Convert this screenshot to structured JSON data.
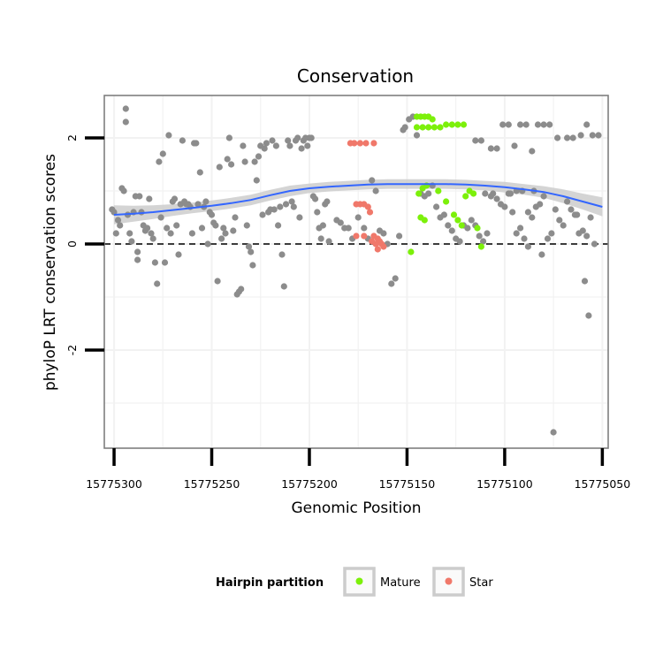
{
  "colors": {
    "other": "#8c8c8c",
    "mature": "#7cf00a",
    "star": "#f0786a",
    "smooth_line": "#3366ff",
    "ribbon": "#cccccc"
  },
  "chart_data": {
    "type": "scatter",
    "title": "Conservation",
    "xlabel": "Genomic Position",
    "ylabel": "phyloP LRT conservation scores",
    "xlim": [
      15775305,
      15775047
    ],
    "x_reversed": true,
    "ylim": [
      -3.85,
      2.8
    ],
    "x_ticks": [
      15775300,
      15775250,
      15775200,
      15775150,
      15775100,
      15775050
    ],
    "x_tick_labels": [
      "15775300",
      "15775250",
      "15775200",
      "15775150",
      "15775100",
      "15775050"
    ],
    "y_ticks": [
      2,
      0,
      -2
    ],
    "y_tick_labels": [
      "2",
      "0",
      "-2"
    ],
    "hline": 0,
    "legend": {
      "title": "Hairpin partition",
      "position": "bottom",
      "entries": [
        {
          "label": "Mature",
          "series": "mature"
        },
        {
          "label": "Star",
          "series": "star"
        }
      ]
    },
    "series": [
      {
        "name": "other",
        "points": [
          [
            15775301,
            0.65
          ],
          [
            15775300,
            0.6
          ],
          [
            15775299,
            0.2
          ],
          [
            15775298,
            0.45
          ],
          [
            15775297,
            0.35
          ],
          [
            15775296,
            1.05
          ],
          [
            15775295,
            1.0
          ],
          [
            15775294,
            2.55
          ],
          [
            15775294,
            2.3
          ],
          [
            15775293,
            0.55
          ],
          [
            15775292,
            0.2
          ],
          [
            15775291,
            0.05
          ],
          [
            15775290,
            0.6
          ],
          [
            15775289,
            0.9
          ],
          [
            15775288,
            -0.15
          ],
          [
            15775288,
            -0.3
          ],
          [
            15775287,
            0.9
          ],
          [
            15775286,
            0.6
          ],
          [
            15775285,
            0.35
          ],
          [
            15775284,
            0.25
          ],
          [
            15775283,
            0.3
          ],
          [
            15775282,
            0.85
          ],
          [
            15775281,
            0.2
          ],
          [
            15775280,
            0.1
          ],
          [
            15775279,
            -0.35
          ],
          [
            15775278,
            -0.75
          ],
          [
            15775277,
            1.55
          ],
          [
            15775276,
            0.5
          ],
          [
            15775275,
            1.7
          ],
          [
            15775274,
            -0.35
          ],
          [
            15775273,
            0.3
          ],
          [
            15775272,
            2.05
          ],
          [
            15775271,
            0.2
          ],
          [
            15775270,
            0.8
          ],
          [
            15775269,
            0.85
          ],
          [
            15775268,
            0.35
          ],
          [
            15775267,
            -0.2
          ],
          [
            15775266,
            0.75
          ],
          [
            15775265,
            1.95
          ],
          [
            15775264,
            0.8
          ],
          [
            15775263,
            0.75
          ],
          [
            15775262,
            0.75
          ],
          [
            15775261,
            0.7
          ],
          [
            15775260,
            0.2
          ],
          [
            15775259,
            1.9
          ],
          [
            15775258,
            1.9
          ],
          [
            15775257,
            0.75
          ],
          [
            15775256,
            1.35
          ],
          [
            15775255,
            0.3
          ],
          [
            15775254,
            0.7
          ],
          [
            15775253,
            0.8
          ],
          [
            15775252,
            0.0
          ],
          [
            15775251,
            0.6
          ],
          [
            15775250,
            0.55
          ],
          [
            15775249,
            0.4
          ],
          [
            15775248,
            0.35
          ],
          [
            15775247,
            -0.7
          ],
          [
            15775246,
            1.45
          ],
          [
            15775245,
            0.1
          ],
          [
            15775244,
            0.3
          ],
          [
            15775243,
            0.2
          ],
          [
            15775242,
            1.6
          ],
          [
            15775241,
            2.0
          ],
          [
            15775240,
            1.5
          ],
          [
            15775239,
            0.25
          ],
          [
            15775238,
            0.5
          ],
          [
            15775237,
            -0.95
          ],
          [
            15775236,
            -0.9
          ],
          [
            15775235,
            -0.85
          ],
          [
            15775234,
            1.85
          ],
          [
            15775233,
            1.55
          ],
          [
            15775232,
            0.35
          ],
          [
            15775231,
            -0.05
          ],
          [
            15775230,
            -0.15
          ],
          [
            15775229,
            -0.4
          ],
          [
            15775228,
            1.55
          ],
          [
            15775227,
            1.2
          ],
          [
            15775226,
            1.65
          ],
          [
            15775225,
            1.85
          ],
          [
            15775224,
            0.55
          ],
          [
            15775223,
            1.8
          ],
          [
            15775222,
            1.9
          ],
          [
            15775221,
            0.6
          ],
          [
            15775220,
            0.65
          ],
          [
            15775219,
            1.95
          ],
          [
            15775218,
            0.65
          ],
          [
            15775217,
            1.85
          ],
          [
            15775216,
            0.35
          ],
          [
            15775215,
            0.7
          ],
          [
            15775214,
            -0.2
          ],
          [
            15775213,
            -0.8
          ],
          [
            15775212,
            0.75
          ],
          [
            15775211,
            1.95
          ],
          [
            15775210,
            1.85
          ],
          [
            15775209,
            0.8
          ],
          [
            15775208,
            0.7
          ],
          [
            15775207,
            1.95
          ],
          [
            15775206,
            2.0
          ],
          [
            15775205,
            0.5
          ],
          [
            15775204,
            1.8
          ],
          [
            15775203,
            1.95
          ],
          [
            15775202,
            2.0
          ],
          [
            15775201,
            1.85
          ],
          [
            15775200,
            2.0
          ],
          [
            15775199,
            2.0
          ],
          [
            15775198,
            0.9
          ],
          [
            15775197,
            0.85
          ],
          [
            15775196,
            0.6
          ],
          [
            15775195,
            0.3
          ],
          [
            15775194,
            0.1
          ],
          [
            15775193,
            0.35
          ],
          [
            15775192,
            0.75
          ],
          [
            15775191,
            0.8
          ],
          [
            15775190,
            0.05
          ],
          [
            15775186,
            0.45
          ],
          [
            15775184,
            0.4
          ],
          [
            15775182,
            0.3
          ],
          [
            15775180,
            0.3
          ],
          [
            15775178,
            0.1
          ],
          [
            15775175,
            0.5
          ],
          [
            15775172,
            0.3
          ],
          [
            15775170,
            0.1
          ],
          [
            15775168,
            1.2
          ],
          [
            15775166,
            1.0
          ],
          [
            15775164,
            0.25
          ],
          [
            15775162,
            0.2
          ],
          [
            15775160,
            0.0
          ],
          [
            15775158,
            -0.75
          ],
          [
            15775156,
            -0.65
          ],
          [
            15775154,
            0.15
          ],
          [
            15775152,
            2.15
          ],
          [
            15775151,
            2.2
          ],
          [
            15775149,
            2.35
          ],
          [
            15775147,
            2.4
          ],
          [
            15775145,
            2.05
          ],
          [
            15775143,
            0.95
          ],
          [
            15775141,
            0.9
          ],
          [
            15775139,
            0.95
          ],
          [
            15775137,
            1.1
          ],
          [
            15775135,
            0.7
          ],
          [
            15775133,
            0.5
          ],
          [
            15775131,
            0.55
          ],
          [
            15775129,
            0.35
          ],
          [
            15775127,
            0.25
          ],
          [
            15775125,
            0.1
          ],
          [
            15775123,
            0.05
          ],
          [
            15775121,
            0.35
          ],
          [
            15775119,
            0.3
          ],
          [
            15775117,
            0.45
          ],
          [
            15775115,
            0.35
          ],
          [
            15775113,
            0.15
          ],
          [
            15775111,
            0.05
          ],
          [
            15775109,
            0.2
          ],
          [
            15775107,
            0.9
          ],
          [
            15775106,
            0.95
          ],
          [
            15775104,
            0.85
          ],
          [
            15775102,
            0.75
          ],
          [
            15775100,
            0.7
          ],
          [
            15775098,
            0.95
          ],
          [
            15775096,
            0.6
          ],
          [
            15775094,
            0.2
          ],
          [
            15775092,
            0.3
          ],
          [
            15775090,
            0.1
          ],
          [
            15775088,
            -0.05
          ],
          [
            15775086,
            0.5
          ],
          [
            15775084,
            0.7
          ],
          [
            15775082,
            0.75
          ],
          [
            15775080,
            0.9
          ],
          [
            15775078,
            0.1
          ],
          [
            15775076,
            0.2
          ],
          [
            15775074,
            0.65
          ],
          [
            15775072,
            0.45
          ],
          [
            15775070,
            0.35
          ],
          [
            15775068,
            0.8
          ],
          [
            15775066,
            0.65
          ],
          [
            15775064,
            0.55
          ],
          [
            15775062,
            0.2
          ],
          [
            15775060,
            0.25
          ],
          [
            15775058,
            0.15
          ],
          [
            15775056,
            0.5
          ],
          [
            15775054,
            0.0
          ],
          [
            15775107,
            1.8
          ],
          [
            15775104,
            1.8
          ],
          [
            15775101,
            2.25
          ],
          [
            15775098,
            2.25
          ],
          [
            15775095,
            1.85
          ],
          [
            15775092,
            2.25
          ],
          [
            15775089,
            2.25
          ],
          [
            15775086,
            1.75
          ],
          [
            15775083,
            2.25
          ],
          [
            15775080,
            2.25
          ],
          [
            15775077,
            2.25
          ],
          [
            15775073,
            2.0
          ],
          [
            15775068,
            2.0
          ],
          [
            15775065,
            2.0
          ],
          [
            15775061,
            2.05
          ],
          [
            15775058,
            2.25
          ],
          [
            15775055,
            2.05
          ],
          [
            15775052,
            2.05
          ],
          [
            15775115,
            1.95
          ],
          [
            15775112,
            1.95
          ],
          [
            15775110,
            0.95
          ],
          [
            15775097,
            0.95
          ],
          [
            15775094,
            1.0
          ],
          [
            15775091,
            1.0
          ],
          [
            15775088,
            0.6
          ],
          [
            15775085,
            1.0
          ],
          [
            15775081,
            -0.2
          ],
          [
            15775075,
            -3.55
          ],
          [
            15775063,
            0.55
          ],
          [
            15775059,
            -0.7
          ],
          [
            15775057,
            -1.35
          ]
        ]
      },
      {
        "name": "mature",
        "points": [
          [
            15775145,
            2.4
          ],
          [
            15775143,
            2.4
          ],
          [
            15775141,
            2.4
          ],
          [
            15775139,
            2.4
          ],
          [
            15775137,
            2.35
          ],
          [
            15775145,
            2.2
          ],
          [
            15775142,
            2.2
          ],
          [
            15775139,
            2.2
          ],
          [
            15775136,
            2.2
          ],
          [
            15775133,
            2.2
          ],
          [
            15775130,
            2.25
          ],
          [
            15775127,
            2.25
          ],
          [
            15775124,
            2.25
          ],
          [
            15775121,
            2.25
          ],
          [
            15775144,
            0.95
          ],
          [
            15775142,
            1.05
          ],
          [
            15775140,
            1.1
          ],
          [
            15775134,
            1.0
          ],
          [
            15775130,
            0.8
          ],
          [
            15775126,
            0.55
          ],
          [
            15775124,
            0.45
          ],
          [
            15775122,
            0.35
          ],
          [
            15775120,
            0.9
          ],
          [
            15775118,
            1.0
          ],
          [
            15775116,
            0.95
          ],
          [
            15775114,
            0.3
          ],
          [
            15775112,
            -0.05
          ],
          [
            15775148,
            -0.15
          ],
          [
            15775143,
            0.5
          ],
          [
            15775141,
            0.45
          ]
        ]
      },
      {
        "name": "star",
        "points": [
          [
            15775179,
            1.9
          ],
          [
            15775177,
            1.9
          ],
          [
            15775174,
            1.9
          ],
          [
            15775171,
            1.9
          ],
          [
            15775167,
            1.9
          ],
          [
            15775176,
            0.75
          ],
          [
            15775174,
            0.75
          ],
          [
            15775172,
            0.75
          ],
          [
            15775170,
            0.7
          ],
          [
            15775169,
            0.6
          ],
          [
            15775176,
            0.15
          ],
          [
            15775172,
            0.15
          ],
          [
            15775167,
            0.15
          ],
          [
            15775165,
            0.1
          ],
          [
            15775164,
            0.05
          ],
          [
            15775163,
            0.0
          ],
          [
            15775166,
            0.0
          ],
          [
            15775162,
            -0.05
          ],
          [
            15775168,
            0.05
          ],
          [
            15775165,
            -0.1
          ]
        ]
      }
    ],
    "smooth": {
      "x": [
        15775300,
        15775290,
        15775280,
        15775270,
        15775260,
        15775250,
        15775240,
        15775230,
        15775220,
        15775210,
        15775200,
        15775190,
        15775180,
        15775170,
        15775160,
        15775150,
        15775140,
        15775130,
        15775120,
        15775110,
        15775100,
        15775090,
        15775080,
        15775070,
        15775060,
        15775050
      ],
      "y": [
        0.55,
        0.57,
        0.6,
        0.64,
        0.68,
        0.72,
        0.77,
        0.83,
        0.92,
        1.0,
        1.05,
        1.08,
        1.1,
        1.12,
        1.13,
        1.13,
        1.13,
        1.13,
        1.12,
        1.1,
        1.07,
        1.03,
        0.98,
        0.9,
        0.8,
        0.7
      ],
      "se": [
        0.18,
        0.15,
        0.13,
        0.11,
        0.1,
        0.1,
        0.1,
        0.1,
        0.1,
        0.1,
        0.09,
        0.09,
        0.09,
        0.09,
        0.09,
        0.09,
        0.09,
        0.09,
        0.09,
        0.09,
        0.1,
        0.1,
        0.11,
        0.13,
        0.15,
        0.18
      ]
    }
  }
}
